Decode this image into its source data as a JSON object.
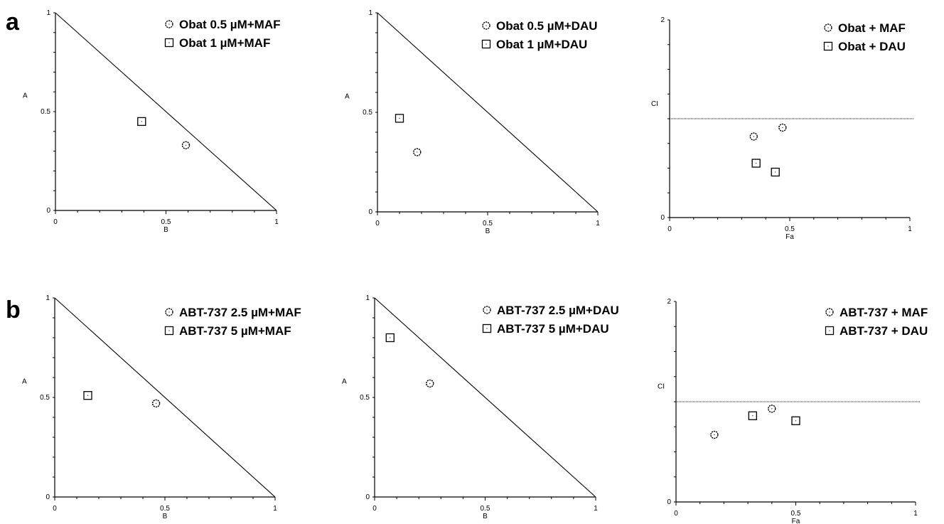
{
  "panel_labels": [
    "a",
    "b"
  ],
  "chart_data": [
    {
      "type": "scatter",
      "row": 0,
      "col": 0,
      "panel": "a",
      "kind": "isobologram",
      "xlabel": "B",
      "ylabel": "A",
      "xlim": [
        0,
        1
      ],
      "ylim": [
        0,
        1
      ],
      "xticks": [
        "0",
        "0.5",
        "1"
      ],
      "yticks": [
        "0",
        "0.5",
        "1"
      ],
      "additivity_line": [
        [
          0,
          1
        ],
        [
          1,
          0
        ]
      ],
      "legend_position": "top-right",
      "series": [
        {
          "name": "Obat 0.5 µM+MAF",
          "marker": "circle",
          "points": [
            [
              0.59,
              0.33
            ]
          ]
        },
        {
          "name": "Obat 1 µM+MAF",
          "marker": "square",
          "points": [
            [
              0.39,
              0.45
            ]
          ]
        }
      ]
    },
    {
      "type": "scatter",
      "row": 0,
      "col": 1,
      "panel": "a",
      "kind": "isobologram",
      "xlabel": "B",
      "ylabel": "A",
      "xlim": [
        0,
        1
      ],
      "ylim": [
        0,
        1
      ],
      "xticks": [
        "0",
        "0.5",
        "1"
      ],
      "yticks": [
        "0",
        "0.5",
        "1"
      ],
      "additivity_line": [
        [
          0,
          1
        ],
        [
          1,
          0
        ]
      ],
      "legend_position": "top-right",
      "series": [
        {
          "name": "Obat 0.5 µM+DAU",
          "marker": "circle",
          "points": [
            [
              0.18,
              0.3
            ]
          ]
        },
        {
          "name": "Obat 1 µM+DAU",
          "marker": "square",
          "points": [
            [
              0.1,
              0.47
            ]
          ]
        }
      ]
    },
    {
      "type": "scatter",
      "row": 0,
      "col": 2,
      "panel": "a",
      "kind": "fa-ci",
      "xlabel": "Fa",
      "ylabel": "CI",
      "xlim": [
        0,
        1
      ],
      "ylim": [
        0,
        2
      ],
      "xticks": [
        "0",
        "0.5",
        "1"
      ],
      "yticks": [
        "0",
        "2"
      ],
      "reference_line_y": 1,
      "legend_position": "top-right",
      "series": [
        {
          "name": "Obat + MAF",
          "marker": "circle",
          "points": [
            [
              0.35,
              0.82
            ],
            [
              0.47,
              0.91
            ]
          ]
        },
        {
          "name": "Obat + DAU",
          "marker": "square",
          "points": [
            [
              0.36,
              0.55
            ],
            [
              0.44,
              0.46
            ]
          ]
        }
      ]
    },
    {
      "type": "scatter",
      "row": 1,
      "col": 0,
      "panel": "b",
      "kind": "isobologram",
      "xlabel": "B",
      "ylabel": "A",
      "xlim": [
        0,
        1
      ],
      "ylim": [
        0,
        1
      ],
      "xticks": [
        "0",
        "0.5",
        "1"
      ],
      "yticks": [
        "0",
        "0.5",
        "1"
      ],
      "additivity_line": [
        [
          0,
          1
        ],
        [
          1,
          0
        ]
      ],
      "legend_position": "top-right",
      "series": [
        {
          "name": "ABT-737 2.5 µM+MAF",
          "marker": "circle",
          "points": [
            [
              0.46,
              0.47
            ]
          ]
        },
        {
          "name": "ABT-737 5 µM+MAF",
          "marker": "square",
          "points": [
            [
              0.15,
              0.51
            ]
          ]
        }
      ]
    },
    {
      "type": "scatter",
      "row": 1,
      "col": 1,
      "panel": "b",
      "kind": "isobologram",
      "xlabel": "B",
      "ylabel": "A",
      "xlim": [
        0,
        1
      ],
      "ylim": [
        0,
        1
      ],
      "xticks": [
        "0",
        "0.5",
        "1"
      ],
      "yticks": [
        "0",
        "0.5",
        "1"
      ],
      "additivity_line": [
        [
          0,
          1
        ],
        [
          1,
          0
        ]
      ],
      "legend_position": "top-right",
      "series": [
        {
          "name": "ABT-737 2.5 µM+DAU",
          "marker": "circle",
          "points": [
            [
              0.25,
              0.57
            ]
          ]
        },
        {
          "name": "ABT-737 5 µM+DAU",
          "marker": "square",
          "points": [
            [
              0.07,
              0.8
            ]
          ]
        }
      ]
    },
    {
      "type": "scatter",
      "row": 1,
      "col": 2,
      "panel": "b",
      "kind": "fa-ci",
      "xlabel": "Fa",
      "ylabel": "CI",
      "xlim": [
        0,
        1
      ],
      "ylim": [
        0,
        2
      ],
      "xticks": [
        "0",
        "0.5",
        "1"
      ],
      "yticks": [
        "0",
        "2"
      ],
      "reference_line_y": 1,
      "legend_position": "top-right",
      "series": [
        {
          "name": "ABT-737 + MAF",
          "marker": "circle",
          "points": [
            [
              0.16,
              0.67
            ],
            [
              0.4,
              0.93
            ]
          ]
        },
        {
          "name": "ABT-737 + DAU",
          "marker": "square",
          "points": [
            [
              0.32,
              0.86
            ],
            [
              0.5,
              0.81
            ]
          ]
        }
      ]
    }
  ]
}
